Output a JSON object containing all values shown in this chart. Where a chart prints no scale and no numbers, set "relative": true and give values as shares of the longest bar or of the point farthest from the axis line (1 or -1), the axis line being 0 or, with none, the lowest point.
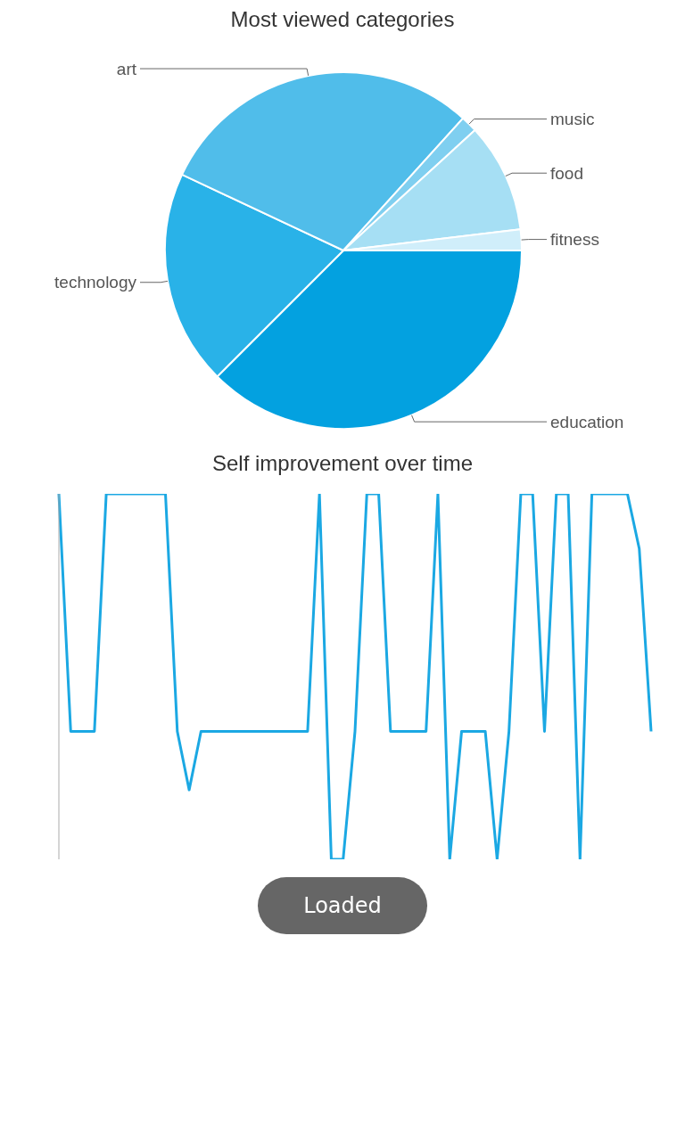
{
  "chart_data": [
    {
      "type": "pie",
      "title": "Most viewed categories",
      "categories": [
        "education",
        "technology",
        "art",
        "music",
        "food",
        "fitness"
      ],
      "values": [
        37.5,
        19.5,
        29.7,
        1.5,
        9.9,
        1.9
      ],
      "colors": [
        "#03a1e0",
        "#29b2e8",
        "#50bdea",
        "#7fcff0",
        "#a6dff4",
        "#d0eefa"
      ]
    },
    {
      "type": "line",
      "title": "Self improvement over time",
      "relative": true,
      "categories": [
        null,
        null,
        null,
        null,
        null,
        null,
        null,
        null,
        null,
        null,
        null,
        null,
        null,
        null,
        null,
        null,
        null,
        null,
        null,
        null,
        null,
        null,
        null,
        null,
        null,
        null,
        null,
        null,
        null,
        null,
        null,
        null,
        null,
        null,
        null,
        null,
        null,
        null,
        null,
        null,
        null,
        null,
        null,
        null,
        null,
        null,
        null,
        null,
        null,
        null,
        null
      ],
      "series": [
        {
          "color": "#1ba8e3",
          "values": [
            1,
            0.35,
            0.35,
            0.35,
            1,
            1,
            1,
            1,
            1,
            1,
            0.35,
            0.19,
            0.35,
            0.35,
            0.35,
            0.35,
            0.35,
            0.35,
            0.35,
            0.35,
            0.35,
            0.35,
            1,
            0,
            0,
            0.35,
            1,
            1,
            0.35,
            0.35,
            0.35,
            0.35,
            1,
            0,
            0.35,
            0.35,
            0.35,
            0,
            0.35,
            1,
            1,
            0.35,
            1,
            1,
            0,
            1,
            1,
            1,
            1,
            0.85,
            0.35
          ]
        }
      ],
      "marker": "none",
      "legend": false,
      "grid": false,
      "annotations": [
        "Loaded"
      ]
    }
  ]
}
